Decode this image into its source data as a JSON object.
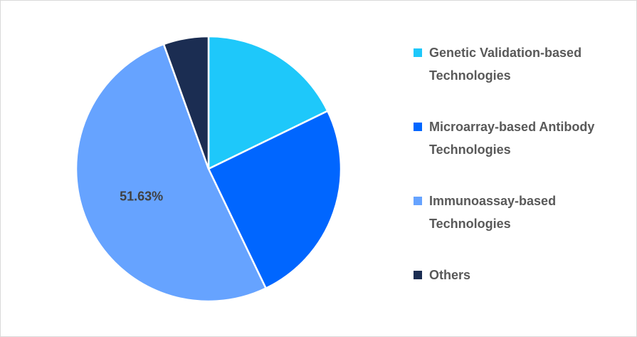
{
  "chart_data": {
    "type": "pie",
    "categories": [
      "Genetic Validation-based Technologies",
      "Microarray-based Antibody Technologies",
      "Immunoassay-based Technologies",
      "Others"
    ],
    "values": [
      17.8,
      25.07,
      51.63,
      5.5
    ],
    "value_labels": [
      null,
      null,
      "51.63%",
      null
    ],
    "colors": [
      "#1ec8fa",
      "#0066ff",
      "#66a3ff",
      "#1b2d52"
    ],
    "legend": "right"
  }
}
